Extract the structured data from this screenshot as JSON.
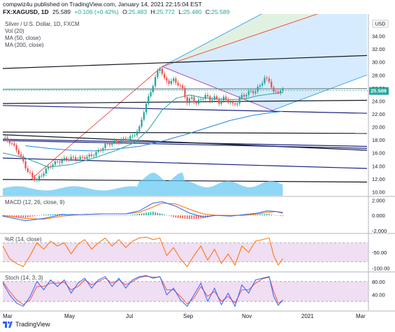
{
  "header": {
    "line1": "compwiz4u published on TradingView.com, January 14, 2021 22:15:04 EST",
    "symbol": "FX:XAGUSD, 1D",
    "price": "25.589",
    "change": "+0.106 (+0.42%)",
    "open_label": "O:",
    "open": "25.483",
    "high_label": "H:",
    "high": "25.772",
    "low_label": "L:",
    "low": "25.480",
    "close_label": "C:",
    "close": "25.589"
  },
  "legend": {
    "title": "Silver / U.S. Dollar, 1D, FXCM",
    "vol": "Vol (20)",
    "ma50": "MA (50, close)",
    "ma200": "MA (200, close)"
  },
  "footer": {
    "brand": "TradingView"
  },
  "colors": {
    "up": "#26a69a",
    "down": "#ef5350",
    "ma50": "#2962ff",
    "ma200": "#1e88e5",
    "volume": "#5ec6f1",
    "macd": "#2962ff",
    "signal": "#ff6d00",
    "wr": "#ff6d00",
    "stoch_k": "#2962ff",
    "stoch_d": "#ef5350",
    "osc_fill": "#e1bee7",
    "price_badge": "#26a69a"
  },
  "chart_data": [
    {
      "type": "candlestick",
      "title": "Silver / U.S. Dollar, 1D, FXCM",
      "currency": "USD",
      "x_ticks": [
        "Mar",
        "May",
        "Jul",
        "Sep",
        "Nov",
        "2021",
        "Mar"
      ],
      "y_ticks": [
        10,
        12,
        14,
        16,
        18,
        20,
        22,
        24,
        26,
        28,
        30,
        32,
        34,
        36
      ],
      "ylim": [
        9.4,
        37.4
      ],
      "last_price": "25.589",
      "approx_close_path": [
        [
          0,
          18.3
        ],
        [
          3,
          17.7
        ],
        [
          6,
          16.6
        ],
        [
          9,
          14.6
        ],
        [
          11,
          13.1
        ],
        [
          13,
          12.3
        ],
        [
          15,
          11.8
        ],
        [
          17,
          12.6
        ],
        [
          19,
          13.4
        ],
        [
          21,
          14.1
        ],
        [
          24,
          14.6
        ],
        [
          27,
          15.0
        ],
        [
          30,
          15.2
        ],
        [
          33,
          15.1
        ],
        [
          36,
          15.3
        ],
        [
          39,
          15.6
        ],
        [
          42,
          16.2
        ],
        [
          45,
          17.2
        ],
        [
          48,
          17.6
        ],
        [
          51,
          17.8
        ],
        [
          54,
          18.1
        ],
        [
          57,
          18.5
        ],
        [
          60,
          19.8
        ],
        [
          62,
          22.5
        ],
        [
          64,
          24.5
        ],
        [
          66,
          26.5
        ],
        [
          68,
          28.5
        ],
        [
          69,
          29.2
        ],
        [
          71,
          27.3
        ],
        [
          73,
          26.9
        ],
        [
          75,
          27.2
        ],
        [
          77,
          26.6
        ],
        [
          79,
          25.8
        ],
        [
          81,
          23.8
        ],
        [
          83,
          24.5
        ],
        [
          85,
          23.6
        ],
        [
          87,
          24.3
        ],
        [
          89,
          24.8
        ],
        [
          91,
          24.2
        ],
        [
          93,
          24.5
        ],
        [
          95,
          23.8
        ],
        [
          97,
          24.4
        ],
        [
          99,
          24.0
        ],
        [
          101,
          23.4
        ],
        [
          103,
          23.8
        ],
        [
          105,
          24.8
        ],
        [
          107,
          25.0
        ],
        [
          109,
          25.5
        ],
        [
          111,
          25.4
        ],
        [
          113,
          26.5
        ],
        [
          115,
          27.4
        ],
        [
          117,
          27.2
        ],
        [
          119,
          25.2
        ],
        [
          121,
          25.5
        ],
        [
          123,
          25.589
        ]
      ],
      "ma50_path": [
        [
          0,
          16.0
        ],
        [
          10,
          15.2
        ],
        [
          20,
          13.8
        ],
        [
          30,
          14.2
        ],
        [
          40,
          15.2
        ],
        [
          50,
          16.4
        ],
        [
          58,
          17.6
        ],
        [
          64,
          19.6
        ],
        [
          70,
          22.6
        ],
        [
          76,
          24.4
        ],
        [
          82,
          24.9
        ],
        [
          88,
          24.5
        ],
        [
          94,
          24.3
        ],
        [
          100,
          24.2
        ],
        [
          106,
          24.3
        ],
        [
          112,
          24.8
        ],
        [
          118,
          25.1
        ],
        [
          123,
          25.3
        ]
      ],
      "ma200_path": [
        [
          10,
          17.1
        ],
        [
          20,
          16.7
        ],
        [
          30,
          16.4
        ],
        [
          40,
          16.3
        ],
        [
          50,
          16.6
        ],
        [
          60,
          17.0
        ],
        [
          70,
          17.8
        ],
        [
          80,
          18.8
        ],
        [
          90,
          19.9
        ],
        [
          100,
          21.0
        ],
        [
          110,
          21.8
        ],
        [
          118,
          22.2
        ],
        [
          123,
          22.4
        ]
      ]
    },
    {
      "type": "line",
      "name": "MACD (12, 26, close, 9)",
      "y_ticks": [
        -2.0,
        0.0,
        2.0
      ],
      "ylim": [
        -2.0,
        2.3
      ],
      "series": [
        {
          "name": "MACD",
          "values": [
            [
              0,
              -0.1
            ],
            [
              10,
              -0.7
            ],
            [
              18,
              -0.4
            ],
            [
              26,
              0.1
            ],
            [
              34,
              0.1
            ],
            [
              44,
              0.2
            ],
            [
              54,
              0.2
            ],
            [
              60,
              0.6
            ],
            [
              66,
              1.6
            ],
            [
              70,
              1.8
            ],
            [
              76,
              1.2
            ],
            [
              82,
              0.3
            ],
            [
              88,
              -0.2
            ],
            [
              94,
              0.0
            ],
            [
              100,
              -0.1
            ],
            [
              106,
              0.1
            ],
            [
              112,
              0.3
            ],
            [
              116,
              0.6
            ],
            [
              120,
              0.5
            ],
            [
              123,
              0.3
            ]
          ]
        },
        {
          "name": "Signal",
          "values": [
            [
              0,
              0.0
            ],
            [
              10,
              -0.4
            ],
            [
              18,
              -0.5
            ],
            [
              26,
              -0.1
            ],
            [
              34,
              0.1
            ],
            [
              44,
              0.2
            ],
            [
              54,
              0.2
            ],
            [
              60,
              0.4
            ],
            [
              66,
              1.1
            ],
            [
              70,
              1.6
            ],
            [
              76,
              1.5
            ],
            [
              82,
              0.8
            ],
            [
              88,
              0.2
            ],
            [
              94,
              0.0
            ],
            [
              100,
              0.0
            ],
            [
              106,
              0.0
            ],
            [
              112,
              0.2
            ],
            [
              116,
              0.4
            ],
            [
              120,
              0.5
            ],
            [
              123,
              0.4
            ]
          ]
        }
      ]
    },
    {
      "type": "line",
      "name": "%R (14, close)",
      "y_ticks": [
        -50.0,
        -100.0
      ],
      "ylim": [
        -105,
        5
      ],
      "levels": [
        -20,
        -80
      ],
      "series": [
        {
          "name": "%R",
          "values": [
            [
              0,
              -30
            ],
            [
              3,
              -70
            ],
            [
              6,
              -85
            ],
            [
              9,
              -95
            ],
            [
              12,
              -60
            ],
            [
              15,
              -20
            ],
            [
              18,
              -40
            ],
            [
              21,
              -15
            ],
            [
              24,
              -30
            ],
            [
              27,
              -20
            ],
            [
              30,
              -55
            ],
            [
              33,
              -25
            ],
            [
              36,
              -10
            ],
            [
              39,
              -40
            ],
            [
              42,
              -20
            ],
            [
              45,
              -5
            ],
            [
              48,
              -30
            ],
            [
              51,
              -10
            ],
            [
              54,
              -35
            ],
            [
              57,
              -15
            ],
            [
              60,
              -5
            ],
            [
              63,
              -2
            ],
            [
              66,
              -10
            ],
            [
              69,
              -5
            ],
            [
              72,
              -60
            ],
            [
              75,
              -35
            ],
            [
              78,
              -70
            ],
            [
              81,
              -95
            ],
            [
              84,
              -60
            ],
            [
              87,
              -30
            ],
            [
              90,
              -75
            ],
            [
              93,
              -40
            ],
            [
              96,
              -85
            ],
            [
              99,
              -55
            ],
            [
              102,
              -90
            ],
            [
              105,
              -30
            ],
            [
              108,
              -50
            ],
            [
              111,
              -15
            ],
            [
              114,
              -10
            ],
            [
              117,
              -5
            ],
            [
              119,
              -60
            ],
            [
              121,
              -90
            ],
            [
              123,
              -70
            ]
          ]
        }
      ]
    },
    {
      "type": "line",
      "name": "Stoch (14, 3, 3)",
      "y_ticks": [
        80.0,
        40.0
      ],
      "ylim": [
        -5,
        105
      ],
      "levels": [
        20,
        80
      ],
      "series": [
        {
          "name": "%K",
          "values": [
            [
              0,
              75
            ],
            [
              3,
              40
            ],
            [
              6,
              15
            ],
            [
              9,
              5
            ],
            [
              12,
              35
            ],
            [
              15,
              80
            ],
            [
              18,
              55
            ],
            [
              21,
              85
            ],
            [
              24,
              65
            ],
            [
              27,
              85
            ],
            [
              30,
              45
            ],
            [
              33,
              75
            ],
            [
              36,
              90
            ],
            [
              39,
              60
            ],
            [
              42,
              85
            ],
            [
              45,
              95
            ],
            [
              48,
              65
            ],
            [
              51,
              90
            ],
            [
              54,
              60
            ],
            [
              57,
              85
            ],
            [
              60,
              95
            ],
            [
              63,
              98
            ],
            [
              66,
              90
            ],
            [
              69,
              95
            ],
            [
              72,
              40
            ],
            [
              75,
              60
            ],
            [
              78,
              25
            ],
            [
              81,
              5
            ],
            [
              84,
              40
            ],
            [
              87,
              75
            ],
            [
              90,
              20
            ],
            [
              93,
              60
            ],
            [
              96,
              10
            ],
            [
              99,
              45
            ],
            [
              102,
              5
            ],
            [
              105,
              70
            ],
            [
              108,
              45
            ],
            [
              111,
              85
            ],
            [
              114,
              90
            ],
            [
              117,
              95
            ],
            [
              119,
              35
            ],
            [
              121,
              8
            ],
            [
              123,
              25
            ]
          ]
        },
        {
          "name": "%D",
          "values": [
            [
              0,
              80
            ],
            [
              3,
              50
            ],
            [
              6,
              25
            ],
            [
              9,
              10
            ],
            [
              12,
              25
            ],
            [
              15,
              65
            ],
            [
              18,
              65
            ],
            [
              21,
              75
            ],
            [
              24,
              75
            ],
            [
              27,
              78
            ],
            [
              30,
              55
            ],
            [
              33,
              65
            ],
            [
              36,
              85
            ],
            [
              39,
              70
            ],
            [
              42,
              80
            ],
            [
              45,
              90
            ],
            [
              48,
              75
            ],
            [
              51,
              85
            ],
            [
              54,
              70
            ],
            [
              57,
              80
            ],
            [
              60,
              92
            ],
            [
              63,
              96
            ],
            [
              66,
              93
            ],
            [
              69,
              94
            ],
            [
              72,
              55
            ],
            [
              75,
              55
            ],
            [
              78,
              35
            ],
            [
              81,
              12
            ],
            [
              84,
              30
            ],
            [
              87,
              65
            ],
            [
              90,
              35
            ],
            [
              93,
              50
            ],
            [
              96,
              20
            ],
            [
              99,
              35
            ],
            [
              102,
              15
            ],
            [
              105,
              55
            ],
            [
              108,
              55
            ],
            [
              111,
              75
            ],
            [
              114,
              88
            ],
            [
              117,
              93
            ],
            [
              119,
              50
            ],
            [
              121,
              15
            ],
            [
              123,
              20
            ]
          ]
        }
      ]
    }
  ]
}
